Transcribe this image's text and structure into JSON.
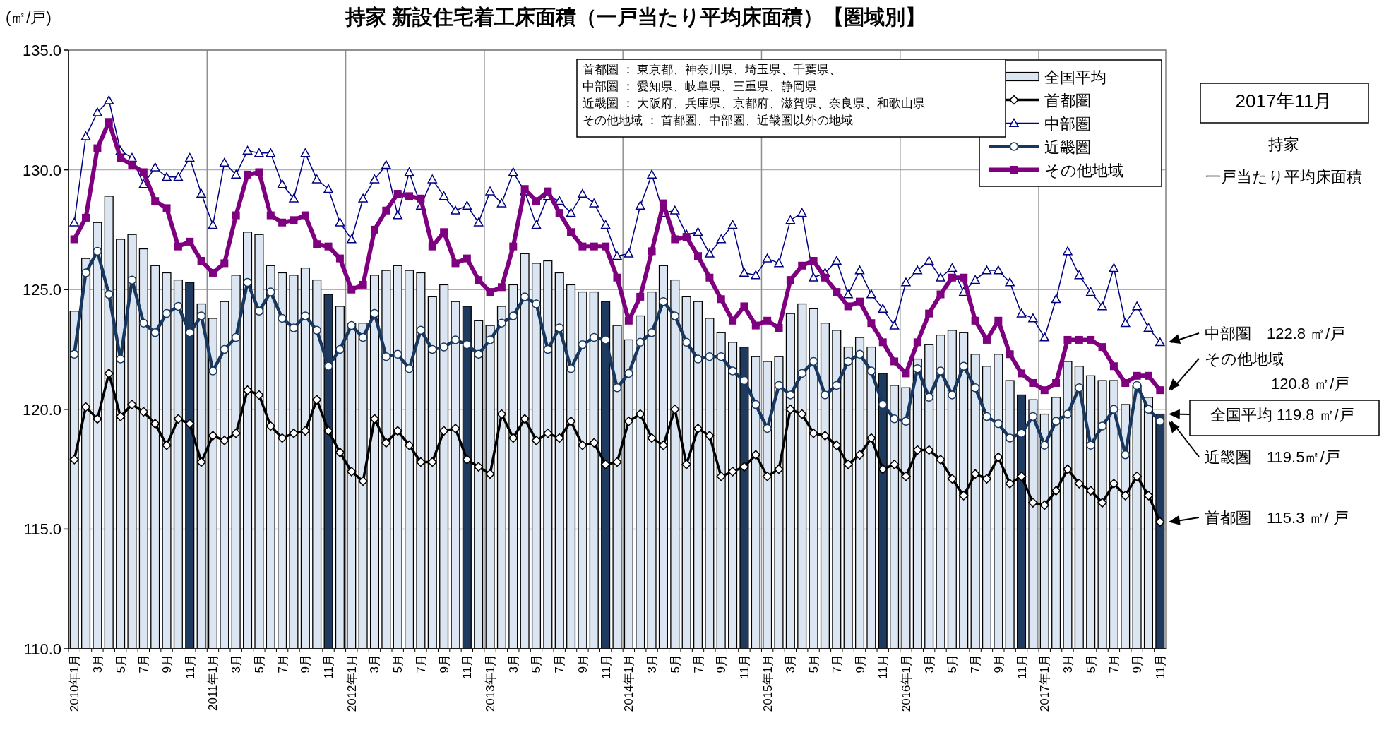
{
  "chart_data": {
    "type": "bar",
    "title": "持家 新設住宅着工床面積（一戸当たり平均床面積）【圏域別】",
    "ylabel": "(㎡/戸)",
    "categories": [
      "2010年1月",
      null,
      "3月",
      null,
      "5月",
      null,
      "7月",
      null,
      "9月",
      null,
      "11月",
      null,
      "2011年1月",
      null,
      "3月",
      null,
      "5月",
      null,
      "7月",
      null,
      "9月",
      null,
      "11月",
      null,
      "2012年1月",
      null,
      "3月",
      null,
      "5月",
      null,
      "7月",
      null,
      "9月",
      null,
      "11月",
      null,
      "2013年1月",
      null,
      "3月",
      null,
      "5月",
      null,
      "7月",
      null,
      "9月",
      null,
      "11月",
      null,
      "2014年1月",
      null,
      "3月",
      null,
      "5月",
      null,
      "7月",
      null,
      "9月",
      null,
      "11月",
      null,
      "2015年1月",
      null,
      "3月",
      null,
      "5月",
      null,
      "7月",
      null,
      "9月",
      null,
      "11月",
      null,
      "2016年1月",
      null,
      "3月",
      null,
      "5月",
      null,
      "7月",
      null,
      "9月",
      null,
      "11月",
      null,
      "2017年1月",
      null,
      "3月",
      null,
      "5月",
      null,
      "7月",
      null,
      "9月",
      null,
      "11月"
    ],
    "series": [
      {
        "name": "全国平均",
        "color": "#dce6f2",
        "colors": [
          "#dce6f2",
          "#dce6f2",
          "#dce6f2",
          "#dce6f2",
          "#dce6f2",
          "#dce6f2",
          "#dce6f2",
          "#dce6f2",
          "#dce6f2",
          "#dce6f2",
          "#1f3a5f",
          "#dce6f2",
          "#dce6f2",
          "#dce6f2",
          "#dce6f2",
          "#dce6f2",
          "#dce6f2",
          "#dce6f2",
          "#dce6f2",
          "#dce6f2",
          "#dce6f2",
          "#dce6f2",
          "#1f3a5f",
          "#dce6f2",
          "#dce6f2",
          "#dce6f2",
          "#dce6f2",
          "#dce6f2",
          "#dce6f2",
          "#dce6f2",
          "#dce6f2",
          "#dce6f2",
          "#dce6f2",
          "#dce6f2",
          "#1f3a5f",
          "#dce6f2",
          "#dce6f2",
          "#dce6f2",
          "#dce6f2",
          "#dce6f2",
          "#dce6f2",
          "#dce6f2",
          "#dce6f2",
          "#dce6f2",
          "#dce6f2",
          "#dce6f2",
          "#1f3a5f",
          "#dce6f2",
          "#dce6f2",
          "#dce6f2",
          "#dce6f2",
          "#dce6f2",
          "#dce6f2",
          "#dce6f2",
          "#dce6f2",
          "#dce6f2",
          "#dce6f2",
          "#dce6f2",
          "#1f3a5f",
          "#dce6f2",
          "#dce6f2",
          "#dce6f2",
          "#dce6f2",
          "#dce6f2",
          "#dce6f2",
          "#dce6f2",
          "#dce6f2",
          "#dce6f2",
          "#dce6f2",
          "#dce6f2",
          "#1f3a5f",
          "#dce6f2",
          "#dce6f2",
          "#dce6f2",
          "#dce6f2",
          "#dce6f2",
          "#dce6f2",
          "#dce6f2",
          "#dce6f2",
          "#dce6f2",
          "#dce6f2",
          "#dce6f2",
          "#1f3a5f",
          "#dce6f2",
          "#dce6f2",
          "#dce6f2",
          "#dce6f2",
          "#dce6f2",
          "#dce6f2",
          "#dce6f2",
          "#dce6f2",
          "#dce6f2",
          "#dce6f2",
          "#dce6f2",
          "#1f3a5f"
        ],
        "values": [
          124.1,
          126.3,
          127.8,
          128.9,
          127.1,
          127.3,
          126.7,
          126.0,
          125.7,
          125.4,
          125.3,
          124.4,
          123.8,
          124.5,
          125.6,
          127.4,
          127.3,
          126.0,
          125.7,
          125.6,
          125.9,
          125.4,
          124.8,
          124.3,
          123.6,
          123.6,
          125.6,
          125.8,
          126.0,
          125.8,
          125.7,
          124.7,
          125.2,
          124.5,
          124.3,
          123.7,
          123.5,
          124.3,
          125.2,
          126.5,
          126.1,
          126.2,
          125.7,
          125.2,
          124.9,
          124.9,
          124.5,
          123.5,
          122.9,
          123.9,
          124.9,
          126.0,
          125.4,
          124.7,
          124.5,
          123.8,
          123.2,
          122.8,
          122.6,
          122.2,
          122.0,
          122.2,
          124.0,
          124.4,
          124.2,
          123.6,
          123.3,
          122.6,
          123.0,
          122.6,
          121.5,
          121.0,
          120.9,
          122.1,
          122.7,
          123.1,
          123.3,
          123.2,
          122.3,
          121.8,
          122.3,
          121.2,
          120.6,
          120.4,
          119.8,
          120.5,
          122.0,
          121.8,
          121.4,
          121.2,
          121.2,
          120.2,
          121.0,
          120.5,
          119.8
        ]
      },
      {
        "name": "首都圏",
        "type": "line",
        "color": "#000000",
        "marker": "diamond",
        "values": [
          117.9,
          120.1,
          119.6,
          121.5,
          119.7,
          120.2,
          119.9,
          119.4,
          118.5,
          119.6,
          119.4,
          117.8,
          118.9,
          118.7,
          119.0,
          120.8,
          120.6,
          119.3,
          118.8,
          119.0,
          119.1,
          120.4,
          119.1,
          118.2,
          117.4,
          117.0,
          119.6,
          118.6,
          119.1,
          118.5,
          117.8,
          117.8,
          119.1,
          119.2,
          117.9,
          117.6,
          117.3,
          119.8,
          118.8,
          119.6,
          118.7,
          119.0,
          118.8,
          119.5,
          118.5,
          118.6,
          117.7,
          117.8,
          119.5,
          119.8,
          118.8,
          118.5,
          120.0,
          117.7,
          119.2,
          118.9,
          117.2,
          117.4,
          117.6,
          118.1,
          117.2,
          117.5,
          120.0,
          119.8,
          119.0,
          118.9,
          118.5,
          117.7,
          118.1,
          118.8,
          117.5,
          117.7,
          117.2,
          118.3,
          118.3,
          117.9,
          117.1,
          116.4,
          117.3,
          117.1,
          118.0,
          116.9,
          117.2,
          116.1,
          116.0,
          116.6,
          117.5,
          116.9,
          116.6,
          116.1,
          116.9,
          116.4,
          117.2,
          116.4,
          115.3
        ]
      },
      {
        "name": "中部圏",
        "type": "line",
        "color": "#000080",
        "marker": "triangle",
        "values": [
          127.8,
          131.4,
          132.4,
          132.9,
          130.8,
          130.5,
          129.4,
          130.1,
          129.7,
          129.7,
          130.5,
          129.0,
          127.7,
          130.3,
          129.8,
          130.8,
          130.7,
          130.7,
          129.4,
          128.8,
          130.7,
          129.6,
          129.2,
          127.8,
          127.1,
          128.8,
          129.6,
          130.2,
          128.1,
          129.9,
          128.5,
          129.6,
          128.9,
          128.3,
          128.5,
          127.8,
          129.1,
          128.6,
          129.9,
          129.1,
          127.7,
          128.9,
          128.7,
          128.2,
          129.0,
          128.6,
          127.7,
          126.4,
          126.5,
          128.5,
          129.8,
          128.2,
          128.3,
          127.3,
          127.4,
          126.5,
          127.1,
          127.7,
          125.7,
          125.6,
          126.3,
          126.1,
          127.9,
          128.2,
          125.5,
          125.7,
          126.2,
          124.8,
          125.8,
          124.8,
          124.2,
          123.5,
          125.3,
          125.8,
          126.2,
          125.5,
          125.9,
          124.9,
          125.4,
          125.8,
          125.8,
          125.3,
          124.0,
          123.8,
          123.0,
          124.6,
          126.6,
          125.6,
          124.9,
          124.3,
          125.9,
          123.6,
          124.3,
          123.4,
          122.8
        ]
      },
      {
        "name": "近畿圏",
        "type": "line",
        "color": "#17375e",
        "marker": "circle",
        "values": [
          122.3,
          125.7,
          126.6,
          124.8,
          122.1,
          125.4,
          123.6,
          123.2,
          124.0,
          124.3,
          123.2,
          123.9,
          121.6,
          122.5,
          123.0,
          125.3,
          124.1,
          124.9,
          123.8,
          123.4,
          123.9,
          123.3,
          121.8,
          122.5,
          123.5,
          123.0,
          124.0,
          122.2,
          122.3,
          121.7,
          123.3,
          122.5,
          122.6,
          122.9,
          122.7,
          122.3,
          122.9,
          123.6,
          123.9,
          124.7,
          124.4,
          122.5,
          123.4,
          121.7,
          122.7,
          123.0,
          122.9,
          120.9,
          121.5,
          122.8,
          123.2,
          124.5,
          123.9,
          122.8,
          122.1,
          122.2,
          122.2,
          121.6,
          121.2,
          120.2,
          119.2,
          121.0,
          120.6,
          121.5,
          122.0,
          120.6,
          121.0,
          122.0,
          122.3,
          121.6,
          120.2,
          119.6,
          119.5,
          121.7,
          120.5,
          121.6,
          120.6,
          121.8,
          120.9,
          119.7,
          119.4,
          118.8,
          119.0,
          119.7,
          118.5,
          119.5,
          119.8,
          120.9,
          118.5,
          119.3,
          120.0,
          118.1,
          121.0,
          120.0,
          119.5
        ]
      },
      {
        "name": "その他地域",
        "type": "line",
        "color": "#7f007f",
        "marker": "square",
        "values": [
          127.1,
          128.0,
          130.9,
          132.0,
          130.5,
          130.2,
          129.9,
          128.7,
          128.4,
          126.8,
          127.0,
          126.2,
          125.7,
          126.1,
          128.1,
          129.8,
          129.9,
          128.1,
          127.8,
          127.9,
          128.1,
          126.9,
          126.8,
          126.3,
          125.0,
          125.2,
          127.5,
          128.3,
          129.0,
          128.9,
          128.8,
          126.8,
          127.4,
          126.1,
          126.3,
          125.4,
          124.9,
          125.1,
          126.8,
          129.2,
          128.7,
          129.1,
          128.2,
          127.4,
          126.8,
          126.8,
          126.8,
          125.5,
          123.7,
          124.7,
          126.6,
          128.6,
          127.1,
          127.2,
          126.4,
          125.5,
          124.6,
          123.7,
          124.3,
          123.5,
          123.7,
          123.4,
          125.4,
          126.0,
          126.2,
          125.5,
          124.9,
          124.3,
          124.5,
          123.6,
          122.8,
          122.0,
          121.5,
          122.8,
          124.0,
          124.8,
          125.5,
          125.5,
          123.7,
          122.9,
          123.7,
          122.3,
          121.5,
          121.1,
          120.8,
          121.1,
          122.9,
          122.9,
          122.9,
          122.6,
          121.8,
          121.1,
          121.4,
          121.4,
          120.8
        ]
      }
    ],
    "ylim": [
      110,
      135
    ],
    "yticks": [
      {
        "value": 110,
        "label": "110.0"
      },
      {
        "value": 115,
        "label": "115.0"
      },
      {
        "value": 120,
        "label": "120.0"
      },
      {
        "value": 125,
        "label": "125.0"
      },
      {
        "value": 130,
        "label": "130.0"
      },
      {
        "value": 135,
        "label": "135.0"
      }
    ],
    "grid": true,
    "legend": "top right",
    "annotations": [
      "首都圏 ： 東京都、神奈川県、埼玉県、千葉県、",
      "中部圏 ： 愛知県、岐阜県、三重県、静岡県",
      "近畿圏 ： 大阪府、兵庫県、京都府、滋賀県、奈良県、和歌山県",
      "その他地域 ： 首都圏、中部圏、近畿圏以外の地域",
      "2017年11月",
      "持家",
      "一戸当たり平均床面積",
      "中部圏　122.8 ㎡/戸",
      "その他地域\n120.8 ㎡/戸",
      "全国平均 119.8 ㎡/戸",
      "近畿圏　119.5㎡/戸",
      "首都圏　115.3 ㎡/ 戸"
    ]
  }
}
